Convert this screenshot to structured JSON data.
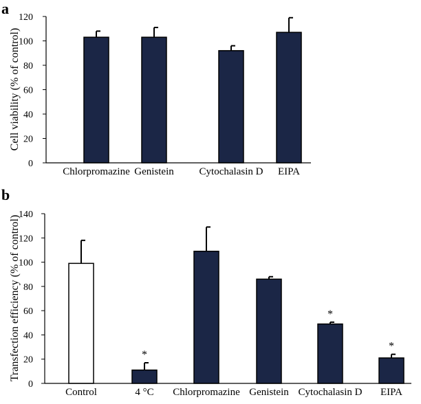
{
  "chart_data": [
    {
      "panel": "a",
      "type": "bar",
      "title": "",
      "xlabel": "",
      "ylabel": "Cell viability (% of control)",
      "ylim": [
        0,
        120
      ],
      "yticks": [
        0,
        20,
        40,
        60,
        80,
        100,
        120
      ],
      "categories": [
        "Chlorpromazine",
        "Genistein",
        "Cytochalasin D",
        "EIPA"
      ],
      "values": [
        103,
        103,
        92,
        107
      ],
      "errors": [
        5,
        8,
        4,
        12
      ],
      "significance": [
        "",
        "",
        "",
        ""
      ],
      "colors": [
        "#1b2646",
        "#1b2646",
        "#1b2646",
        "#1b2646"
      ],
      "grid": false
    },
    {
      "panel": "b",
      "type": "bar",
      "title": "",
      "xlabel": "",
      "ylabel": "Transfection efficiency (% of control)",
      "ylim": [
        0,
        140
      ],
      "yticks": [
        0,
        20,
        40,
        60,
        80,
        100,
        120,
        140
      ],
      "categories": [
        "Control",
        "4 °C",
        "Chlorpromazine",
        "Genistein",
        "Cytochalasin D",
        "EIPA"
      ],
      "values": [
        99,
        11,
        109,
        86,
        49,
        21
      ],
      "errors": [
        19,
        6,
        20,
        2,
        1.5,
        3
      ],
      "significance": [
        "",
        "*",
        "",
        "",
        "*",
        "*"
      ],
      "colors": [
        "#ffffff",
        "#1b2646",
        "#1b2646",
        "#1b2646",
        "#1b2646",
        "#1b2646"
      ],
      "grid": false
    }
  ]
}
